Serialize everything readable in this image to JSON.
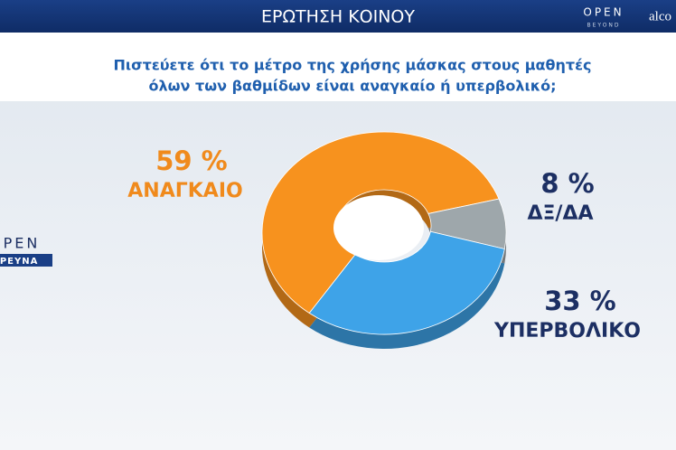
{
  "chart_data": {
    "type": "pie",
    "donut": true,
    "title": "ΕΡΩΤΗΣΗ ΚΟΙΝΟΥ",
    "subtitle": [
      "Πιστεύετε ότι το μέτρο της χρήσης μάσκας στους μαθητές",
      "όλων των βαθμίδων είναι αναγκαίο ή υπερβολικό;"
    ],
    "categories": [
      "ΑΝΑΓΚΑΙΟ",
      "ΔΞ/ΔΑ",
      "ΥΠΕΡΒΟΛΙΚΟ"
    ],
    "values": [
      59,
      8,
      33
    ],
    "value_labels": [
      "59 %",
      "8 %",
      "33 %"
    ],
    "colors": [
      "#f7921e",
      "#9ea7ab",
      "#3ea3e8"
    ],
    "label_colors": [
      "#f08a1c",
      "#1c2f63",
      "#1c2f63"
    ]
  },
  "logos": {
    "top_right": [
      "OPEN",
      "BEYOND",
      "alco"
    ],
    "left": [
      "OPEN",
      "ΕΡΕΥΝΑ"
    ]
  }
}
